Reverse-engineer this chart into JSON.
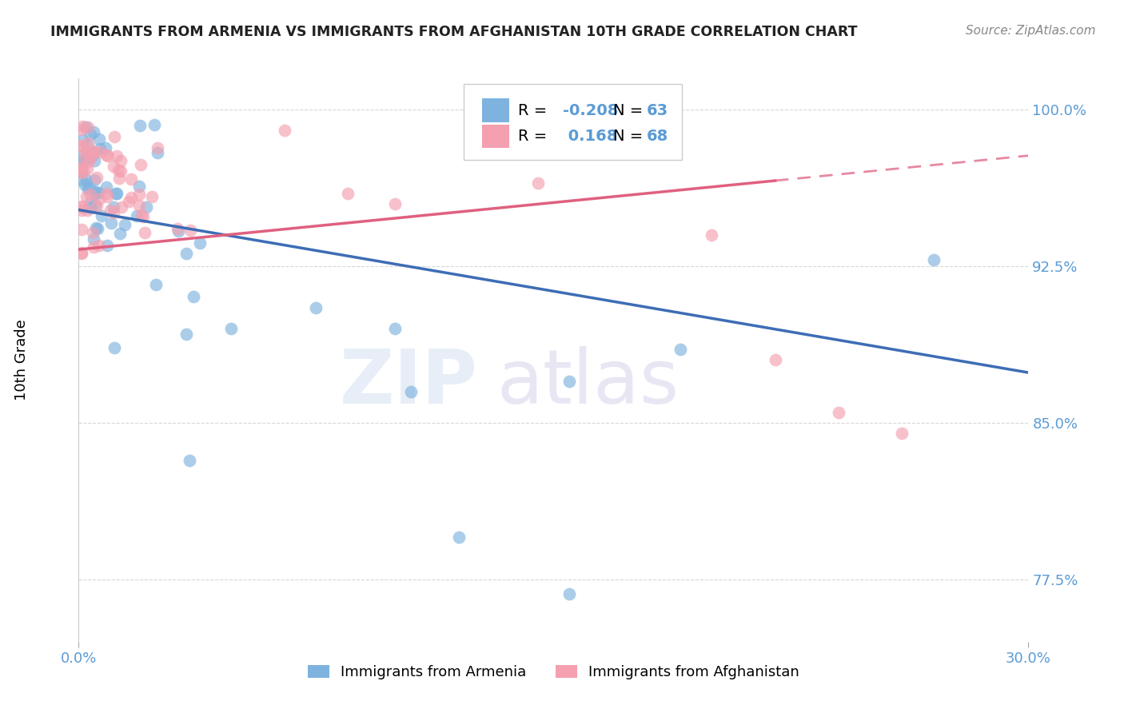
{
  "title": "IMMIGRANTS FROM ARMENIA VS IMMIGRANTS FROM AFGHANISTAN 10TH GRADE CORRELATION CHART",
  "source": "Source: ZipAtlas.com",
  "ylabel": "10th Grade",
  "xlim": [
    0.0,
    0.3
  ],
  "ylim": [
    0.745,
    1.015
  ],
  "armenia_color": "#7eb3e0",
  "afghanistan_color": "#f4a0b0",
  "armenia_R": -0.208,
  "armenia_N": 63,
  "afghanistan_R": 0.168,
  "afghanistan_N": 68,
  "watermark_zip": "ZIP",
  "watermark_atlas": "atlas",
  "legend_label_armenia": "Immigrants from Armenia",
  "legend_label_afghanistan": "Immigrants from Afghanistan",
  "title_color": "#222222",
  "axis_color": "#5b9bd5",
  "grid_color": "#d8d8d8",
  "trendline_armenia_color": "#3d6db5",
  "trendline_afghanistan_color": "#e06080",
  "arm_line_x0": 0.0,
  "arm_line_y0": 0.952,
  "arm_line_x1": 0.3,
  "arm_line_y1": 0.874,
  "afg_line_x0": 0.0,
  "afg_line_y0": 0.933,
  "afg_line_solid_x1": 0.22,
  "afg_line_solid_y1": 0.966,
  "afg_line_dash_x1": 0.3,
  "afg_line_dash_y1": 0.978
}
